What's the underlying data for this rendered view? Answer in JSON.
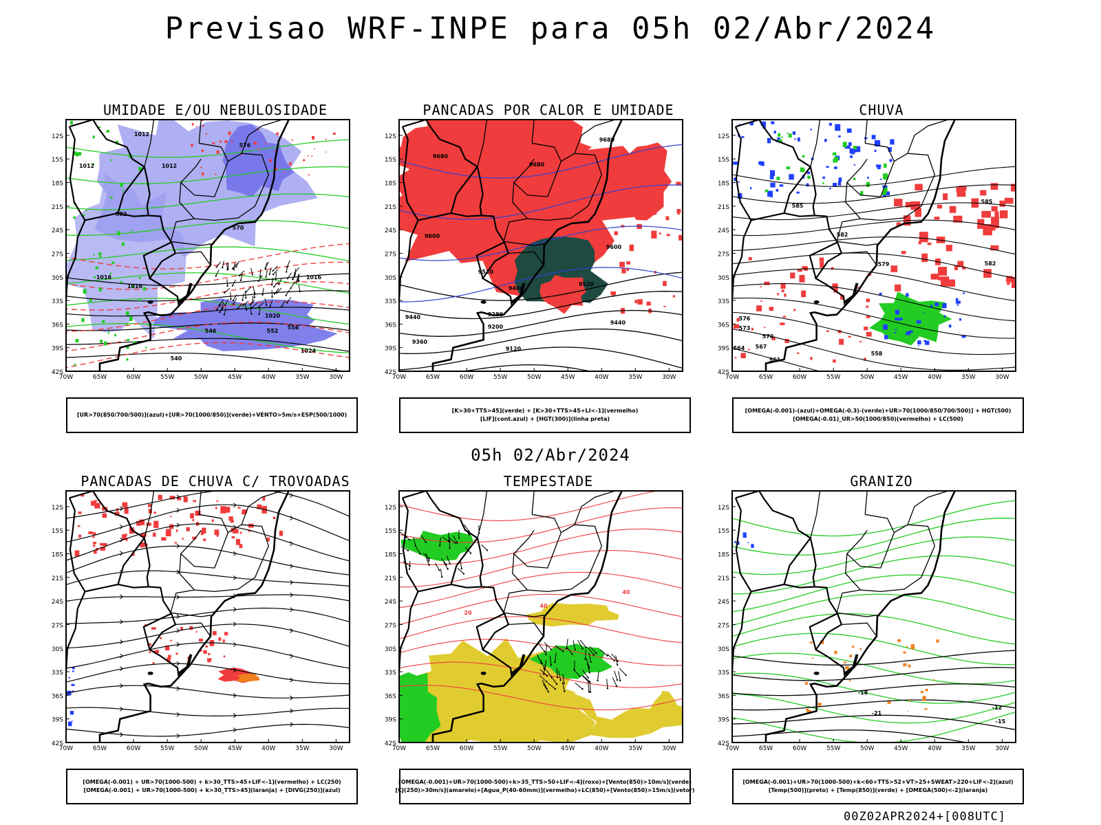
{
  "title": "Previsao WRF-INPE  para 05h 02/Abr/2024",
  "subtitle": "05h 02/Abr/2024",
  "footer": "00Z02APR2024+[008UTC]",
  "axes": {
    "lat_labels": [
      "12S",
      "15S",
      "18S",
      "21S",
      "24S",
      "27S",
      "30S",
      "33S",
      "36S",
      "39S",
      "42S"
    ],
    "lon_labels": [
      "70W",
      "65W",
      "60W",
      "55W",
      "50W",
      "45W",
      "40W",
      "35W",
      "30W"
    ]
  },
  "panels": [
    {
      "title": "UMIDADE E/OU NEBULOSIDADE",
      "legend": [
        "[UR>70(850/700/500)](azul)+[UR>70(1000/850)](verde)+VENTO>5m/s+ESP(500/1000)"
      ],
      "contour_labels": [
        "1012",
        "1012",
        "1012",
        "1016",
        "1016",
        "1016",
        "1020",
        "1024",
        "570",
        "576",
        "582",
        "552",
        "546",
        "540",
        "558"
      ]
    },
    {
      "title": "PANCADAS POR CALOR E UMIDADE",
      "legend": [
        "[K>30+TTS>45](verde) + [K>30+TTS>45+LI<-1](vermelho)",
        "[LIF](cont.azul) + [HGT(300)](linha preta)"
      ],
      "contour_labels": [
        "9680",
        "9680",
        "9680",
        "9600",
        "9600",
        "9520",
        "9520",
        "9440",
        "9440",
        "9360",
        "9280",
        "9200",
        "9120",
        "9440"
      ]
    },
    {
      "title": "CHUVA",
      "legend": [
        "[OMEGA(-0.001)-(azul)+OMEGA(-0.3)-(verde)+UR>70(1000/850/700/500)] + HGT(500)",
        "[OMEGA(-0.01)_UR>50(1000/850)(vermelho) + LC(500)"
      ],
      "contour_labels": [
        "585",
        "585",
        "582",
        "579",
        "576",
        "573",
        "570",
        "567",
        "564",
        "561",
        "558",
        "582"
      ]
    },
    {
      "title": "PANCADAS DE CHUVA C/ TROVOADAS",
      "legend": [
        "[OMEGA(-0.001) + UR>70(1000-500) + k>30_TTS>45+LIF<-1](vermelho) + LC(250)",
        "[OMEGA(-0.001) + UR>70(1000-500) + k>30_TTS>45](laranja) + [DIVG(250)](azul)"
      ],
      "contour_labels": []
    },
    {
      "title": "TEMPESTADE",
      "legend": [
        "[OMEGA(-0.001)+UR>70(1000-500)+k>35_TTS>50+LIF<-4](roxo)+[Vento(850)>10m/s](verde)",
        "[CJ(250)>30m/s](amarelo)+[Agua_P(40-60mm)](vermelho)+LC(850)+[Vento(850)>15m/s](vetor)"
      ],
      "contour_labels": [
        "40",
        "40",
        "20"
      ]
    },
    {
      "title": "GRANIZO",
      "legend": [
        "[OMEGA(-0.001)+UR>70(1000-500)+k<60+TTS>52+VT>25+SWEAT>220+LIF<-2](azul)",
        "[Temp(500)](preto) + [Temp(850)](verde) + [OMEGA(500)<-2](laranja)"
      ],
      "contour_labels": [
        "-18",
        "-21",
        "-15",
        "-12"
      ]
    }
  ],
  "colors": {
    "blue_shade": "#9b9bf0",
    "red": "#f03c3c",
    "green": "#22cc22",
    "yellow": "#e0cc30",
    "dark_teal": "#1f4a42",
    "orange": "#f08020",
    "blue": "#2040ff"
  }
}
